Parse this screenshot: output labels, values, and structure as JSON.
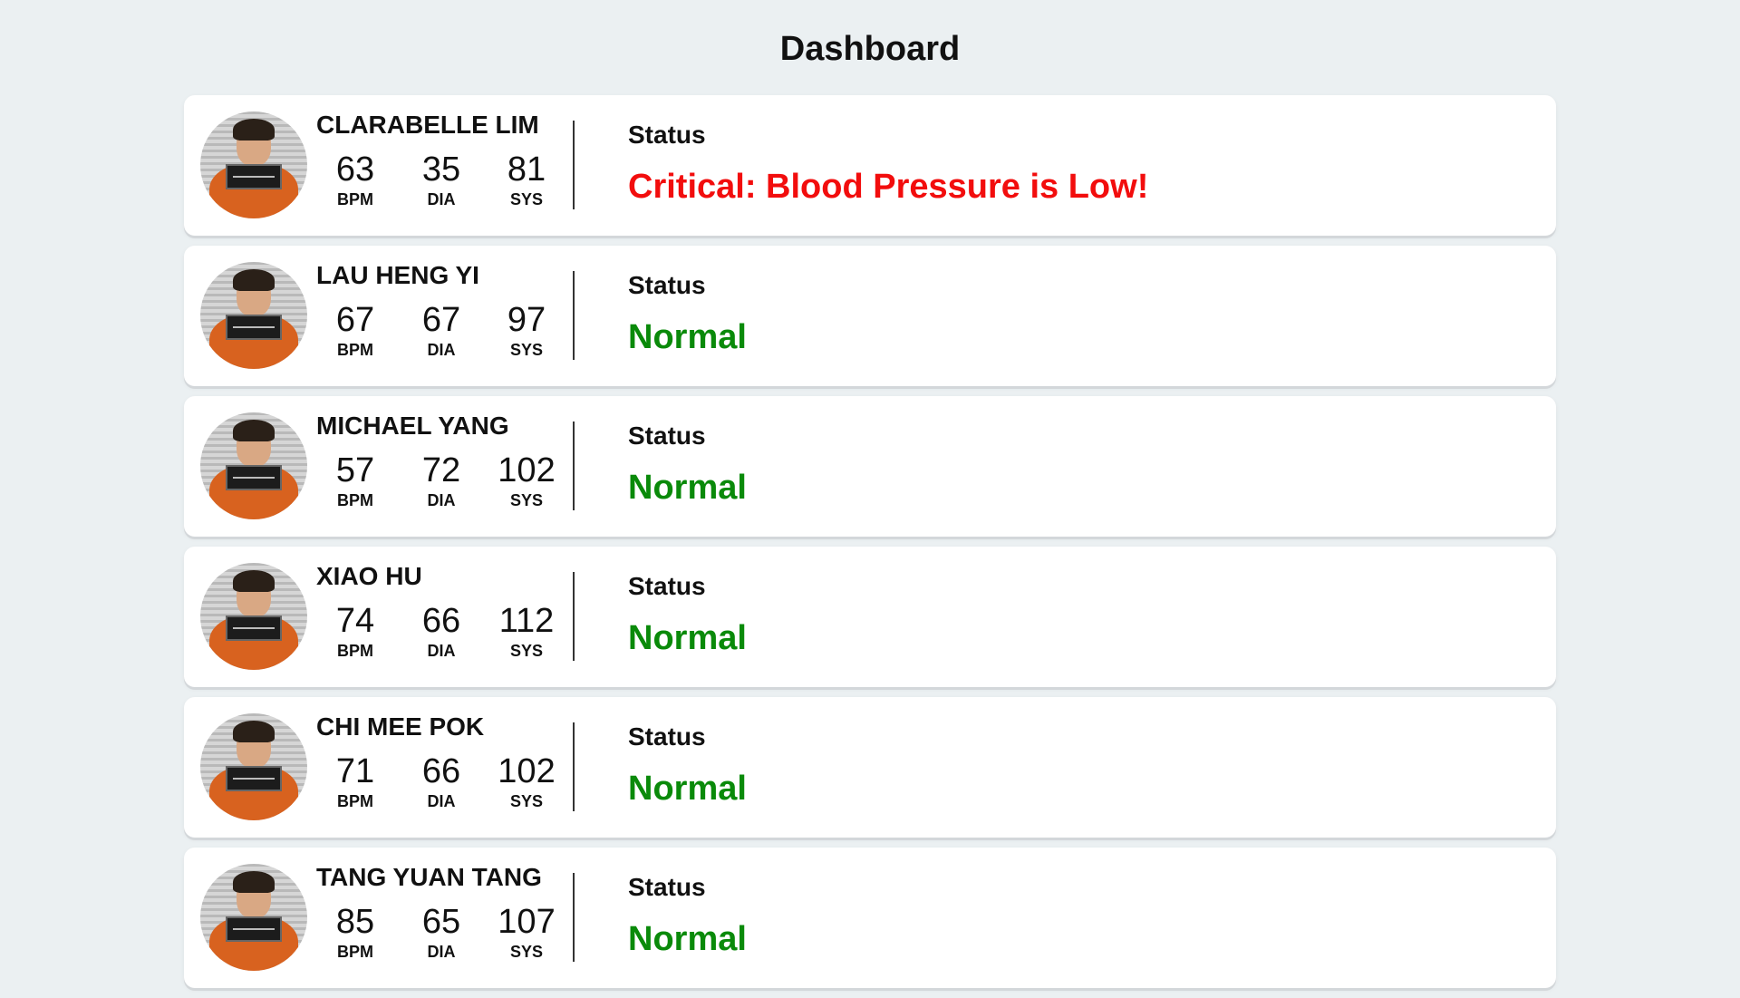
{
  "page": {
    "title": "Dashboard"
  },
  "labels": {
    "status": "Status",
    "bpm": "BPM",
    "dia": "DIA",
    "sys": "SYS"
  },
  "colors": {
    "normal": "#0a8a0a",
    "critical": "#f20d0d",
    "background": "#ebf0f2"
  },
  "patients": [
    {
      "name": "CLARABELLE LIM",
      "bpm": "63",
      "dia": "35",
      "sys": "81",
      "status": "Critical: Blood Pressure is Low!",
      "status_type": "critical"
    },
    {
      "name": "LAU HENG YI",
      "bpm": "67",
      "dia": "67",
      "sys": "97",
      "status": "Normal",
      "status_type": "normal"
    },
    {
      "name": "MICHAEL YANG",
      "bpm": "57",
      "dia": "72",
      "sys": "102",
      "status": "Normal",
      "status_type": "normal"
    },
    {
      "name": "XIAO HU",
      "bpm": "74",
      "dia": "66",
      "sys": "112",
      "status": "Normal",
      "status_type": "normal"
    },
    {
      "name": "CHI MEE POK",
      "bpm": "71",
      "dia": "66",
      "sys": "102",
      "status": "Normal",
      "status_type": "normal"
    },
    {
      "name": "TANG YUAN TANG",
      "bpm": "85",
      "dia": "65",
      "sys": "107",
      "status": "Normal",
      "status_type": "normal"
    }
  ]
}
